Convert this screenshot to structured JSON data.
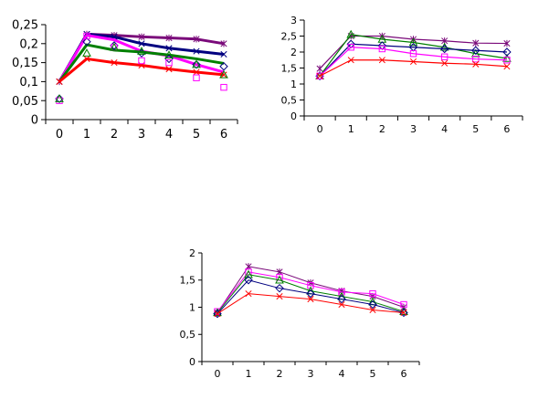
{
  "chart_data": [
    {
      "type": "line",
      "title": "",
      "xlabel": "",
      "ylabel": "",
      "categories": [
        "0",
        "1",
        "2",
        "3",
        "4",
        "5",
        "6"
      ],
      "ylim": [
        0,
        0.25
      ],
      "yticks": [
        "0",
        "0,05",
        "0,1",
        "0,15",
        "0,2",
        "0,25"
      ],
      "yticks_values": [
        0,
        0.05,
        0.1,
        0.15,
        0.2,
        0.25
      ],
      "grid": false,
      "legend": "none",
      "series": [
        {
          "values": [
            0.1,
            0.225,
            0.222,
            0.218,
            0.215,
            0.212,
            0.2
          ],
          "color": "#7a0a7a",
          "marker": "star",
          "line": true
        },
        {
          "values": [
            0.1,
            0.225,
            0.218,
            0.2,
            0.188,
            0.18,
            0.172
          ],
          "color": "#000080",
          "marker": "x",
          "line": true
        },
        {
          "values": [
            0.1,
            0.222,
            0.21,
            0.18,
            0.168,
            0.145,
            0.125
          ],
          "color": "#ff00ff",
          "marker": "none",
          "line": true
        },
        {
          "values": [
            0.1,
            0.197,
            0.183,
            0.178,
            0.17,
            0.16,
            0.148
          ],
          "color": "#008000",
          "marker": "none",
          "line": true
        },
        {
          "values": [
            0.1,
            0.16,
            0.15,
            0.143,
            0.133,
            0.125,
            0.118
          ],
          "color": "#ff0000",
          "marker": "x",
          "line": true
        },
        {
          "values": [
            0.055,
            0.205,
            0.195,
            0.175,
            0.16,
            0.145,
            0.14
          ],
          "color": "#000080",
          "marker": "diamond",
          "line": false
        },
        {
          "values": [
            0.05,
            0.22,
            0.19,
            0.155,
            0.15,
            0.11,
            0.085
          ],
          "color": "#ff00ff",
          "marker": "square",
          "line": false
        },
        {
          "values": [
            0.055,
            0.175,
            0.19,
            0.18,
            0.17,
            0.145,
            0.118
          ],
          "color": "#008000",
          "marker": "triangle",
          "line": false
        }
      ]
    },
    {
      "type": "line",
      "title": "",
      "xlabel": "",
      "ylabel": "",
      "categories": [
        "0",
        "1",
        "2",
        "3",
        "4",
        "5",
        "6"
      ],
      "ylim": [
        0,
        3
      ],
      "yticks": [
        "0",
        "0,5",
        "1",
        "1,5",
        "2",
        "2,5",
        "3"
      ],
      "yticks_values": [
        0,
        0.5,
        1,
        1.5,
        2,
        2.5,
        3
      ],
      "grid": false,
      "legend": "none",
      "series": [
        {
          "values": [
            1.48,
            2.5,
            2.5,
            2.4,
            2.35,
            2.28,
            2.27
          ],
          "color": "#7a0a7a",
          "marker": "star",
          "line": true
        },
        {
          "values": [
            1.25,
            2.55,
            2.4,
            2.3,
            2.15,
            1.95,
            1.8
          ],
          "color": "#008000",
          "marker": "triangle",
          "line": true
        },
        {
          "values": [
            1.25,
            2.25,
            2.2,
            2.15,
            2.1,
            2.05,
            2.0
          ],
          "color": "#000080",
          "marker": "diamond",
          "line": true
        },
        {
          "values": [
            1.25,
            2.15,
            2.1,
            1.95,
            1.85,
            1.78,
            1.75
          ],
          "color": "#ff00ff",
          "marker": "square",
          "line": true
        },
        {
          "values": [
            1.25,
            1.75,
            1.75,
            1.7,
            1.65,
            1.62,
            1.55
          ],
          "color": "#ff0000",
          "marker": "x",
          "line": true
        }
      ]
    },
    {
      "type": "line",
      "title": "",
      "xlabel": "",
      "ylabel": "",
      "categories": [
        "0",
        "1",
        "2",
        "3",
        "4",
        "5",
        "6"
      ],
      "ylim": [
        0,
        2
      ],
      "yticks": [
        "0",
        "0,5",
        "1",
        "1,5",
        "2"
      ],
      "yticks_values": [
        0,
        0.5,
        1,
        1.5,
        2
      ],
      "grid": false,
      "legend": "none",
      "series": [
        {
          "values": [
            0.9,
            1.75,
            1.65,
            1.45,
            1.3,
            1.2,
            1.0
          ],
          "color": "#7a0a7a",
          "marker": "star",
          "line": true
        },
        {
          "values": [
            0.92,
            1.65,
            1.55,
            1.4,
            1.28,
            1.25,
            1.05
          ],
          "color": "#ff00ff",
          "marker": "square",
          "line": true
        },
        {
          "values": [
            0.9,
            1.6,
            1.5,
            1.3,
            1.2,
            1.1,
            0.92
          ],
          "color": "#008000",
          "marker": "triangle",
          "line": true
        },
        {
          "values": [
            0.88,
            1.5,
            1.35,
            1.25,
            1.15,
            1.05,
            0.9
          ],
          "color": "#000080",
          "marker": "diamond",
          "line": true
        },
        {
          "values": [
            0.88,
            1.25,
            1.2,
            1.15,
            1.05,
            0.95,
            0.9
          ],
          "color": "#ff0000",
          "marker": "x",
          "line": true
        }
      ]
    }
  ]
}
